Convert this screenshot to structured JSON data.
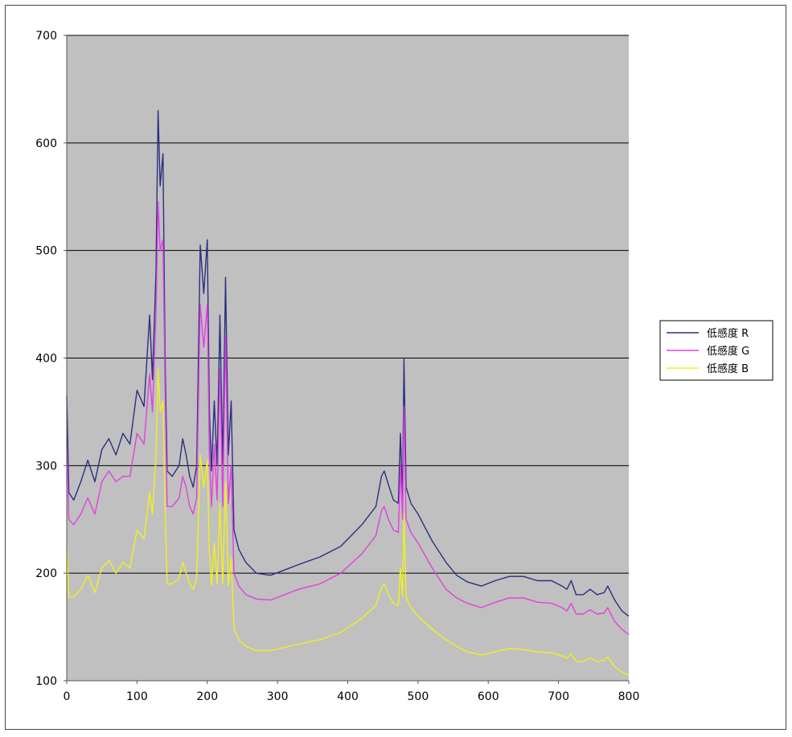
{
  "chart_data": {
    "type": "line",
    "title": "",
    "xlabel": "",
    "ylabel": "",
    "xlim": [
      0,
      800
    ],
    "ylim": [
      100,
      700
    ],
    "xticks": [
      0,
      100,
      200,
      300,
      400,
      500,
      600,
      700,
      800
    ],
    "yticks": [
      100,
      200,
      300,
      400,
      500,
      600,
      700
    ],
    "grid": "horizontal",
    "plot_background": "#c0c0c0",
    "legend_position": "right",
    "series": [
      {
        "name": "低感度 R",
        "color": "#2b2f80",
        "points": [
          [
            0,
            365
          ],
          [
            3,
            275
          ],
          [
            10,
            268
          ],
          [
            20,
            285
          ],
          [
            30,
            305
          ],
          [
            40,
            285
          ],
          [
            50,
            315
          ],
          [
            60,
            325
          ],
          [
            70,
            310
          ],
          [
            80,
            330
          ],
          [
            90,
            320
          ],
          [
            100,
            370
          ],
          [
            110,
            355
          ],
          [
            118,
            440
          ],
          [
            122,
            380
          ],
          [
            127,
            480
          ],
          [
            130,
            630
          ],
          [
            133,
            560
          ],
          [
            137,
            590
          ],
          [
            140,
            400
          ],
          [
            143,
            295
          ],
          [
            150,
            290
          ],
          [
            160,
            300
          ],
          [
            165,
            325
          ],
          [
            170,
            310
          ],
          [
            175,
            290
          ],
          [
            180,
            280
          ],
          [
            185,
            300
          ],
          [
            190,
            505
          ],
          [
            195,
            460
          ],
          [
            200,
            510
          ],
          [
            203,
            350
          ],
          [
            206,
            295
          ],
          [
            210,
            360
          ],
          [
            214,
            300
          ],
          [
            218,
            440
          ],
          [
            222,
            300
          ],
          [
            226,
            475
          ],
          [
            230,
            310
          ],
          [
            234,
            360
          ],
          [
            238,
            240
          ],
          [
            245,
            222
          ],
          [
            255,
            210
          ],
          [
            270,
            200
          ],
          [
            290,
            198
          ],
          [
            310,
            203
          ],
          [
            330,
            208
          ],
          [
            360,
            215
          ],
          [
            390,
            225
          ],
          [
            420,
            245
          ],
          [
            440,
            262
          ],
          [
            448,
            290
          ],
          [
            452,
            295
          ],
          [
            458,
            282
          ],
          [
            465,
            268
          ],
          [
            472,
            265
          ],
          [
            475,
            330
          ],
          [
            478,
            270
          ],
          [
            480,
            400
          ],
          [
            483,
            280
          ],
          [
            490,
            265
          ],
          [
            500,
            255
          ],
          [
            520,
            230
          ],
          [
            540,
            210
          ],
          [
            555,
            198
          ],
          [
            570,
            192
          ],
          [
            590,
            188
          ],
          [
            610,
            193
          ],
          [
            630,
            197
          ],
          [
            650,
            197
          ],
          [
            670,
            193
          ],
          [
            690,
            193
          ],
          [
            705,
            188
          ],
          [
            712,
            185
          ],
          [
            718,
            193
          ],
          [
            725,
            180
          ],
          [
            735,
            180
          ],
          [
            745,
            185
          ],
          [
            755,
            180
          ],
          [
            765,
            182
          ],
          [
            770,
            188
          ],
          [
            780,
            175
          ],
          [
            790,
            165
          ],
          [
            800,
            160
          ]
        ]
      },
      {
        "name": "低感度 G",
        "color": "#e040e0",
        "points": [
          [
            0,
            320
          ],
          [
            3,
            250
          ],
          [
            10,
            245
          ],
          [
            20,
            255
          ],
          [
            30,
            270
          ],
          [
            40,
            255
          ],
          [
            50,
            285
          ],
          [
            60,
            295
          ],
          [
            70,
            285
          ],
          [
            80,
            290
          ],
          [
            90,
            290
          ],
          [
            100,
            330
          ],
          [
            110,
            320
          ],
          [
            118,
            385
          ],
          [
            122,
            350
          ],
          [
            127,
            440
          ],
          [
            130,
            545
          ],
          [
            133,
            500
          ],
          [
            137,
            510
          ],
          [
            140,
            370
          ],
          [
            143,
            262
          ],
          [
            150,
            262
          ],
          [
            160,
            270
          ],
          [
            165,
            290
          ],
          [
            170,
            280
          ],
          [
            175,
            262
          ],
          [
            180,
            255
          ],
          [
            185,
            270
          ],
          [
            190,
            450
          ],
          [
            195,
            410
          ],
          [
            200,
            450
          ],
          [
            203,
            310
          ],
          [
            206,
            262
          ],
          [
            210,
            320
          ],
          [
            214,
            268
          ],
          [
            218,
            390
          ],
          [
            222,
            262
          ],
          [
            226,
            420
          ],
          [
            230,
            265
          ],
          [
            234,
            300
          ],
          [
            238,
            200
          ],
          [
            245,
            188
          ],
          [
            255,
            180
          ],
          [
            270,
            176
          ],
          [
            290,
            175
          ],
          [
            310,
            180
          ],
          [
            330,
            185
          ],
          [
            360,
            190
          ],
          [
            390,
            200
          ],
          [
            420,
            218
          ],
          [
            440,
            235
          ],
          [
            448,
            258
          ],
          [
            452,
            262
          ],
          [
            458,
            250
          ],
          [
            465,
            240
          ],
          [
            472,
            238
          ],
          [
            475,
            300
          ],
          [
            478,
            250
          ],
          [
            480,
            355
          ],
          [
            483,
            250
          ],
          [
            490,
            238
          ],
          [
            500,
            228
          ],
          [
            520,
            205
          ],
          [
            540,
            185
          ],
          [
            555,
            177
          ],
          [
            570,
            172
          ],
          [
            590,
            168
          ],
          [
            610,
            173
          ],
          [
            630,
            177
          ],
          [
            650,
            177
          ],
          [
            670,
            173
          ],
          [
            690,
            172
          ],
          [
            705,
            168
          ],
          [
            712,
            165
          ],
          [
            718,
            172
          ],
          [
            725,
            162
          ],
          [
            735,
            162
          ],
          [
            745,
            166
          ],
          [
            755,
            162
          ],
          [
            765,
            163
          ],
          [
            770,
            168
          ],
          [
            780,
            155
          ],
          [
            790,
            148
          ],
          [
            800,
            143
          ]
        ]
      },
      {
        "name": "低感度 B",
        "color": "#f0f020",
        "points": [
          [
            0,
            225
          ],
          [
            3,
            178
          ],
          [
            10,
            178
          ],
          [
            20,
            185
          ],
          [
            30,
            198
          ],
          [
            40,
            182
          ],
          [
            50,
            205
          ],
          [
            60,
            212
          ],
          [
            70,
            200
          ],
          [
            80,
            210
          ],
          [
            90,
            205
          ],
          [
            100,
            240
          ],
          [
            110,
            232
          ],
          [
            118,
            275
          ],
          [
            122,
            255
          ],
          [
            127,
            310
          ],
          [
            130,
            390
          ],
          [
            133,
            350
          ],
          [
            137,
            360
          ],
          [
            140,
            260
          ],
          [
            143,
            190
          ],
          [
            150,
            190
          ],
          [
            160,
            195
          ],
          [
            165,
            210
          ],
          [
            170,
            200
          ],
          [
            175,
            190
          ],
          [
            180,
            185
          ],
          [
            185,
            195
          ],
          [
            190,
            310
          ],
          [
            195,
            280
          ],
          [
            200,
            305
          ],
          [
            203,
            220
          ],
          [
            206,
            188
          ],
          [
            210,
            228
          ],
          [
            214,
            190
          ],
          [
            218,
            265
          ],
          [
            222,
            190
          ],
          [
            226,
            285
          ],
          [
            230,
            188
          ],
          [
            234,
            215
          ],
          [
            238,
            148
          ],
          [
            245,
            138
          ],
          [
            255,
            132
          ],
          [
            270,
            128
          ],
          [
            290,
            128
          ],
          [
            310,
            131
          ],
          [
            330,
            134
          ],
          [
            360,
            138
          ],
          [
            390,
            145
          ],
          [
            420,
            158
          ],
          [
            440,
            170
          ],
          [
            448,
            186
          ],
          [
            452,
            190
          ],
          [
            458,
            180
          ],
          [
            465,
            172
          ],
          [
            472,
            170
          ],
          [
            475,
            205
          ],
          [
            478,
            178
          ],
          [
            480,
            255
          ],
          [
            483,
            178
          ],
          [
            490,
            168
          ],
          [
            500,
            160
          ],
          [
            520,
            148
          ],
          [
            540,
            138
          ],
          [
            555,
            132
          ],
          [
            570,
            127
          ],
          [
            590,
            124
          ],
          [
            610,
            127
          ],
          [
            630,
            130
          ],
          [
            650,
            129
          ],
          [
            670,
            127
          ],
          [
            690,
            126
          ],
          [
            705,
            123
          ],
          [
            712,
            121
          ],
          [
            718,
            125
          ],
          [
            725,
            118
          ],
          [
            735,
            118
          ],
          [
            745,
            121
          ],
          [
            755,
            118
          ],
          [
            765,
            119
          ],
          [
            770,
            122
          ],
          [
            780,
            113
          ],
          [
            790,
            108
          ],
          [
            800,
            105
          ]
        ]
      }
    ]
  }
}
